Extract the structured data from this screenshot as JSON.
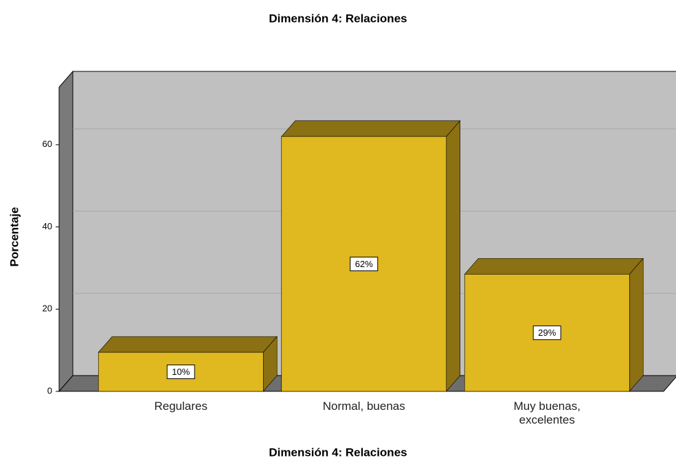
{
  "chart_data": {
    "type": "bar3d",
    "title": "Dimensión 4: Relaciones",
    "x_label": "Dimensión 4: Relaciones",
    "y_label": "Porcentaje",
    "categories": [
      "Regulares",
      "Normal, buenas",
      "Muy buenas, excelentes"
    ],
    "values": [
      9.5,
      62,
      28.5
    ],
    "value_labels": [
      "10%",
      "62%",
      "29%"
    ],
    "color": "#e0b81f",
    "ylim": [
      0,
      74
    ],
    "yticks": [
      0,
      20,
      40,
      60
    ],
    "grid": true
  }
}
